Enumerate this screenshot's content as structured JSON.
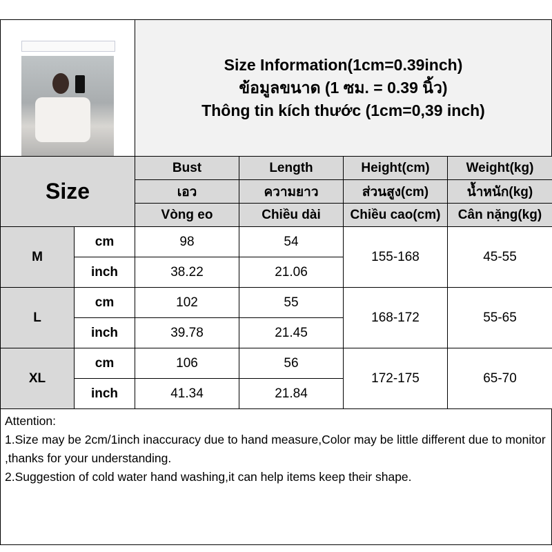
{
  "title_lines": [
    "Size Information(1cm=0.39inch)",
    "ข้อมูลขนาด (1 ซม. = 0.39 นิ้ว)",
    "Thông tin kích thước (1cm=0,39 inch)"
  ],
  "size_label": "Size",
  "columns": [
    {
      "en": "Bust",
      "th": "เอว",
      "vi": "Vòng eo"
    },
    {
      "en": "Length",
      "th": "ความยาว",
      "vi": "Chiều dài"
    },
    {
      "en": "Height(cm)",
      "th": "ส่วนสูง(cm)",
      "vi": "Chiều cao(cm)"
    },
    {
      "en": "Weight(kg)",
      "th": "น้ำหนัก(kg)",
      "vi": "Cân nặng(kg)"
    }
  ],
  "units": {
    "cm": "cm",
    "inch": "inch"
  },
  "rows": [
    {
      "size": "M",
      "cm": [
        "98",
        "54"
      ],
      "inch": [
        "38.22",
        "21.06"
      ],
      "height": "155-168",
      "weight": "45-55"
    },
    {
      "size": "L",
      "cm": [
        "102",
        "55"
      ],
      "inch": [
        "39.78",
        "21.45"
      ],
      "height": "168-172",
      "weight": "55-65"
    },
    {
      "size": "XL",
      "cm": [
        "106",
        "56"
      ],
      "inch": [
        "41.34",
        "21.84"
      ],
      "height": "172-175",
      "weight": "65-70"
    }
  ],
  "notes": [
    "Attention:",
    "1.Size may be 2cm/1inch inaccuracy due to hand measure,Color may be little different due to monitor ,thanks for your understanding.",
    "2.Suggestion of cold water hand washing,it can help items keep their shape."
  ]
}
